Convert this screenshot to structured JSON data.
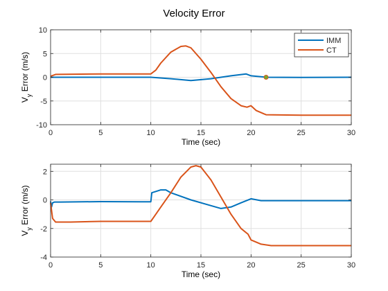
{
  "title": "Velocity Error",
  "colors": {
    "IMM": "#0072BD",
    "CT": "#D95319"
  },
  "chart_data": [
    {
      "type": "line",
      "xlabel": "Time (sec)",
      "ylabel": "V_y Error (m/s)",
      "xlim": [
        0,
        30
      ],
      "ylim": [
        -10,
        10
      ],
      "xticks": [
        0,
        5,
        10,
        15,
        20,
        25,
        30
      ],
      "yticks": [
        -10,
        -5,
        0,
        5,
        10
      ],
      "grid": true,
      "legend": {
        "position": "top-right",
        "entries": [
          "IMM",
          "CT"
        ]
      },
      "marker": {
        "x": 21.5,
        "y": 0
      },
      "series": [
        {
          "name": "IMM",
          "x": [
            0,
            5,
            10,
            12,
            14,
            16,
            18,
            19.5,
            20,
            21.5,
            25,
            30
          ],
          "y": [
            0,
            0,
            0,
            -0.3,
            -0.7,
            -0.3,
            0.3,
            0.7,
            0.3,
            0,
            -0.05,
            0
          ]
        },
        {
          "name": "CT",
          "x": [
            0,
            0.5,
            5,
            10,
            10.5,
            11,
            12,
            13,
            13.5,
            14,
            15,
            16,
            17,
            18,
            19,
            19.6,
            20,
            20.5,
            21.5,
            25,
            30
          ],
          "y": [
            0.2,
            0.6,
            0.7,
            0.7,
            1.5,
            3.0,
            5.3,
            6.5,
            6.6,
            6.2,
            3.8,
            1.0,
            -2.0,
            -4.5,
            -6.0,
            -6.3,
            -6.0,
            -7.0,
            -7.9,
            -8.0,
            -8.0
          ]
        }
      ]
    },
    {
      "type": "line",
      "xlabel": "Time (sec)",
      "ylabel": "V_y Error (m/s)",
      "xlim": [
        0,
        30
      ],
      "ylim": [
        -4,
        2.5
      ],
      "xticks": [
        0,
        5,
        10,
        15,
        20,
        25,
        30
      ],
      "yticks": [
        -4,
        -2,
        0,
        2
      ],
      "grid": true,
      "series": [
        {
          "name": "IMM",
          "x": [
            0,
            0.1,
            0.2,
            0.4,
            1,
            5,
            9,
            10,
            10.1,
            11,
            11.5,
            12,
            14,
            16,
            17,
            18,
            19,
            20,
            21,
            25,
            30
          ],
          "y": [
            -0.1,
            -0.5,
            -0.2,
            -0.15,
            -0.15,
            -0.12,
            -0.13,
            -0.13,
            0.5,
            0.7,
            0.7,
            0.5,
            0.0,
            -0.4,
            -0.6,
            -0.5,
            -0.2,
            0.08,
            -0.05,
            -0.05,
            -0.05
          ]
        },
        {
          "name": "CT",
          "x": [
            0,
            0.2,
            0.5,
            2,
            5,
            9,
            10,
            10.5,
            11,
            12,
            13,
            14,
            14.5,
            15,
            16,
            17,
            18,
            19,
            19.7,
            20,
            21,
            22,
            25,
            30
          ],
          "y": [
            -0.2,
            -1.3,
            -1.55,
            -1.55,
            -1.5,
            -1.5,
            -1.5,
            -1.0,
            -0.5,
            0.5,
            1.6,
            2.3,
            2.4,
            2.3,
            1.4,
            0.2,
            -1.0,
            -2.0,
            -2.4,
            -2.8,
            -3.1,
            -3.2,
            -3.2,
            -3.2
          ]
        }
      ]
    }
  ]
}
